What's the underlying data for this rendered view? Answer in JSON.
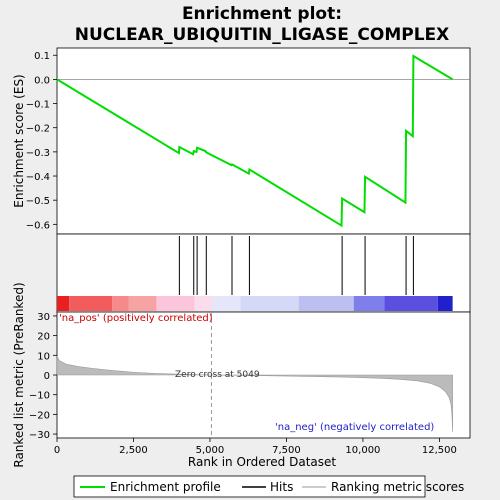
{
  "chart_data": {
    "type": "line",
    "title_line1": "Enrichment plot:",
    "title_line2": "NUCLEAR_UBIQUITIN_LIGASE_COMPLEX",
    "top_ylabel": "Enrichment score (ES)",
    "bottom_ylabel": "Ranked list metric (PreRanked)",
    "xlabel": "Rank in Ordered Dataset",
    "xlim": [
      0,
      13500
    ],
    "es_ylim": [
      -0.64,
      0.13
    ],
    "es_yticks": [
      0.1,
      0.0,
      -0.1,
      -0.2,
      -0.3,
      -0.4,
      -0.5,
      -0.6
    ],
    "es_ytick_labels": [
      "0.1",
      "0.0",
      "−0.1",
      "−0.2",
      "−0.3",
      "−0.4",
      "−0.5",
      "−0.6"
    ],
    "metric_ylim": [
      -32,
      32
    ],
    "metric_yticks": [
      30,
      20,
      10,
      0,
      -10,
      -20,
      -30
    ],
    "metric_ytick_labels": [
      "30",
      "20",
      "10",
      "0",
      "−10",
      "−20",
      "−30"
    ],
    "xticks": [
      0,
      2500,
      5000,
      7500,
      10000,
      12500
    ],
    "xtick_labels": [
      "0",
      "2,500",
      "5,000",
      "7,500",
      "10,000",
      "12,500"
    ],
    "n_genes": 12932,
    "zero_cross": 5049,
    "zero_cross_label": "Zero cross at 5049",
    "pos_label": "'na_pos' (positively correlated)",
    "neg_label": "'na_neg' (negatively correlated)",
    "es_profile": [
      [
        0,
        0.0
      ],
      [
        3985,
        -0.305
      ],
      [
        4000,
        -0.28
      ],
      [
        4450,
        -0.31
      ],
      [
        4470,
        -0.297
      ],
      [
        4560,
        -0.3
      ],
      [
        4580,
        -0.283
      ],
      [
        4860,
        -0.297
      ],
      [
        4880,
        -0.302
      ],
      [
        5700,
        -0.355
      ],
      [
        5720,
        -0.352
      ],
      [
        6270,
        -0.39
      ],
      [
        6290,
        -0.373
      ],
      [
        9300,
        -0.605
      ],
      [
        9320,
        -0.493
      ],
      [
        10050,
        -0.55
      ],
      [
        10070,
        -0.403
      ],
      [
        11390,
        -0.51
      ],
      [
        11410,
        -0.213
      ],
      [
        11630,
        -0.235
      ],
      [
        11650,
        0.097
      ],
      [
        12932,
        0.0
      ]
    ],
    "hits": [
      4000,
      4470,
      4580,
      4880,
      5720,
      6290,
      9320,
      10070,
      11410,
      11650
    ],
    "metric_profile": [
      [
        0,
        9.5
      ],
      [
        80,
        7.2
      ],
      [
        300,
        5.5
      ],
      [
        700,
        4.3
      ],
      [
        1200,
        3.3
      ],
      [
        1800,
        2.3
      ],
      [
        2500,
        1.4
      ],
      [
        3200,
        0.8
      ],
      [
        4000,
        0.4
      ],
      [
        5049,
        0.0
      ],
      [
        6500,
        -0.3
      ],
      [
        8000,
        -0.65
      ],
      [
        9500,
        -1.1
      ],
      [
        10500,
        -1.6
      ],
      [
        11200,
        -2.2
      ],
      [
        11800,
        -3.0
      ],
      [
        12200,
        -4.2
      ],
      [
        12500,
        -6.0
      ],
      [
        12700,
        -8.5
      ],
      [
        12820,
        -11.5
      ],
      [
        12880,
        -15
      ],
      [
        12910,
        -20
      ],
      [
        12932,
        -29
      ]
    ],
    "colorbar_segments": [
      {
        "from": 0,
        "to": 400,
        "color": "#ea2020"
      },
      {
        "from": 400,
        "to": 1800,
        "color": "#f25c5c"
      },
      {
        "from": 1800,
        "to": 2350,
        "color": "#f68a8a"
      },
      {
        "from": 2350,
        "to": 3250,
        "color": "#f8a3a3"
      },
      {
        "from": 3250,
        "to": 4500,
        "color": "#fbc5dc"
      },
      {
        "from": 4500,
        "to": 5049,
        "color": "#fbdcec"
      },
      {
        "from": 5049,
        "to": 6000,
        "color": "#e6e6fa"
      },
      {
        "from": 6000,
        "to": 7900,
        "color": "#d6d8f8"
      },
      {
        "from": 7900,
        "to": 9700,
        "color": "#bdbff2"
      },
      {
        "from": 9700,
        "to": 10700,
        "color": "#7f7feb"
      },
      {
        "from": 10700,
        "to": 12450,
        "color": "#5b4fe0"
      },
      {
        "from": 12450,
        "to": 12932,
        "color": "#2020cc"
      }
    ],
    "legend": [
      {
        "label": "Enrichment profile",
        "color": "#00dd00"
      },
      {
        "label": "Hits",
        "color": "#000000"
      },
      {
        "label": "Ranking metric scores",
        "color": "#bbbbbb"
      }
    ]
  }
}
